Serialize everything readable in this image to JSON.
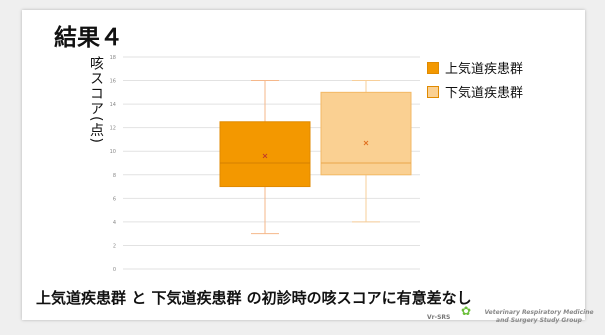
{
  "slide": {
    "title": "結果４",
    "conclusion": "上気道疾患群 と 下気道疾患群 の初診時の咳スコアに有意差なし",
    "footer_logo": "Vr-SRS",
    "footer_org": "Veterinary Respiratory Medicine and Surgery Study Group"
  },
  "chart_data": {
    "type": "box",
    "ylabel": "咳スコア(点)",
    "ylim": [
      0,
      18
    ],
    "yticks": [
      0,
      2,
      4,
      6,
      8,
      10,
      12,
      14,
      16,
      18
    ],
    "grid": true,
    "legend_position": "top-right",
    "series": [
      {
        "name": "上気道疾患群",
        "color": "#f39800",
        "min": 3,
        "q1": 7,
        "median": 9,
        "q3": 12.5,
        "max": 16,
        "mean": 9.6
      },
      {
        "name": "下気道疾患群",
        "color": "#fad092",
        "min": 4,
        "q1": 8,
        "median": 9,
        "q3": 15,
        "max": 16,
        "mean": 10.7
      }
    ]
  }
}
